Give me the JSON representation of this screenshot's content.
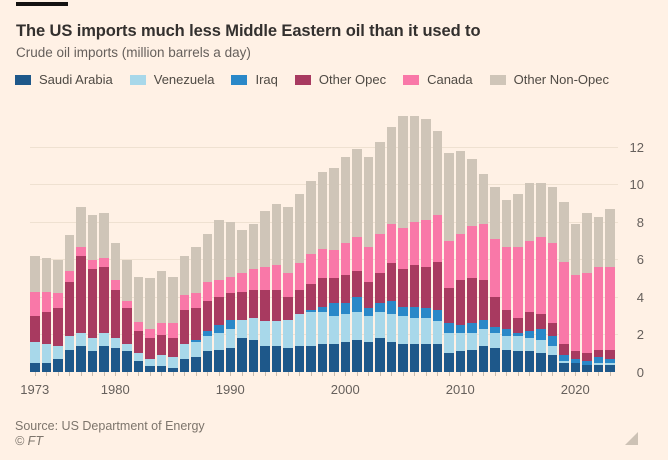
{
  "header": {
    "title": "The US imports much less Middle Eastern oil than it used to",
    "subtitle": "Crude oil imports (million barrels a day)"
  },
  "colors": {
    "background": "#fff1e5",
    "saudi_arabia": "#1e588a",
    "venezuela": "#a8d8ea",
    "iraq": "#2a88c8",
    "other_opec": "#a83a60",
    "canada": "#f978a8",
    "other_non_opec": "#cfc5b8",
    "gridline": "#efe1d1",
    "axis_text": "#66605c",
    "title_text": "#33302e"
  },
  "legend": {
    "items": [
      {
        "label": "Saudi Arabia",
        "color": "#1e588a"
      },
      {
        "label": "Venezuela",
        "color": "#a8d8ea"
      },
      {
        "label": "Iraq",
        "color": "#2a88c8"
      },
      {
        "label": "Other Opec",
        "color": "#a83a60"
      },
      {
        "label": "Canada",
        "color": "#f978a8"
      },
      {
        "label": "Other Non-Opec",
        "color": "#cfc5b8"
      }
    ]
  },
  "chart_data": {
    "type": "bar",
    "stacked": true,
    "title": "The US imports much less Middle Eastern oil than it used to",
    "subtitle": "Crude oil imports (million barrels a day)",
    "xlabel": "",
    "ylabel": "million barrels a day",
    "ylim": [
      0,
      14
    ],
    "y_ticks": [
      0,
      2,
      4,
      6,
      8,
      10,
      12
    ],
    "x_ticks": [
      1973,
      1980,
      1990,
      2000,
      2010,
      2020
    ],
    "grid": "horizontal",
    "legend_position": "top",
    "y_axis_side": "right",
    "categories": [
      1973,
      1974,
      1975,
      1976,
      1977,
      1978,
      1979,
      1980,
      1981,
      1982,
      1983,
      1984,
      1985,
      1986,
      1987,
      1988,
      1989,
      1990,
      1991,
      1992,
      1993,
      1994,
      1995,
      1996,
      1997,
      1998,
      1999,
      2000,
      2001,
      2002,
      2003,
      2004,
      2005,
      2006,
      2007,
      2008,
      2009,
      2010,
      2011,
      2012,
      2013,
      2014,
      2015,
      2016,
      2017,
      2018,
      2019,
      2020,
      2021,
      2022,
      2023
    ],
    "series": [
      {
        "name": "Saudi Arabia",
        "color": "#1e588a",
        "values": [
          0.5,
          0.5,
          0.7,
          1.2,
          1.4,
          1.1,
          1.4,
          1.3,
          1.1,
          0.6,
          0.3,
          0.3,
          0.2,
          0.7,
          0.8,
          1.1,
          1.2,
          1.3,
          1.8,
          1.7,
          1.4,
          1.4,
          1.3,
          1.4,
          1.4,
          1.5,
          1.5,
          1.6,
          1.7,
          1.6,
          1.8,
          1.6,
          1.5,
          1.5,
          1.5,
          1.5,
          1.0,
          1.1,
          1.2,
          1.4,
          1.3,
          1.2,
          1.1,
          1.1,
          1.0,
          0.9,
          0.5,
          0.5,
          0.4,
          0.4,
          0.4
        ]
      },
      {
        "name": "Venezuela",
        "color": "#a8d8ea",
        "values": [
          1.1,
          1.0,
          0.7,
          0.7,
          0.7,
          0.7,
          0.7,
          0.5,
          0.4,
          0.4,
          0.4,
          0.6,
          0.6,
          0.8,
          0.8,
          0.8,
          0.9,
          1.0,
          1.0,
          1.2,
          1.3,
          1.3,
          1.5,
          1.7,
          1.8,
          1.7,
          1.5,
          1.5,
          1.5,
          1.4,
          1.4,
          1.5,
          1.5,
          1.4,
          1.4,
          1.2,
          1.1,
          1.0,
          0.9,
          0.9,
          0.8,
          0.7,
          0.8,
          0.7,
          0.7,
          0.5,
          0.1,
          0.0,
          0.0,
          0.1,
          0.1
        ]
      },
      {
        "name": "Iraq",
        "color": "#2a88c8",
        "values": [
          0.0,
          0.0,
          0.0,
          0.0,
          0.0,
          0.0,
          0.0,
          0.0,
          0.0,
          0.0,
          0.0,
          0.0,
          0.0,
          0.0,
          0.1,
          0.3,
          0.4,
          0.5,
          0.0,
          0.0,
          0.0,
          0.0,
          0.0,
          0.0,
          0.1,
          0.3,
          0.7,
          0.6,
          0.8,
          0.4,
          0.5,
          0.7,
          0.5,
          0.6,
          0.5,
          0.6,
          0.5,
          0.4,
          0.5,
          0.5,
          0.3,
          0.4,
          0.2,
          0.4,
          0.6,
          0.5,
          0.3,
          0.2,
          0.2,
          0.3,
          0.2
        ]
      },
      {
        "name": "Other Opec",
        "color": "#a83a60",
        "values": [
          1.4,
          1.7,
          2.0,
          2.9,
          4.1,
          3.7,
          3.5,
          2.6,
          1.9,
          1.2,
          1.1,
          1.1,
          1.0,
          1.8,
          1.7,
          1.6,
          1.5,
          1.4,
          1.5,
          1.5,
          1.7,
          1.7,
          1.2,
          1.3,
          1.4,
          1.5,
          1.3,
          1.5,
          1.4,
          1.4,
          1.6,
          2.0,
          2.0,
          2.2,
          2.2,
          2.6,
          1.9,
          2.4,
          2.4,
          2.1,
          1.6,
          1.0,
          0.8,
          1.0,
          0.8,
          0.7,
          0.6,
          0.4,
          0.4,
          0.4,
          0.5
        ]
      },
      {
        "name": "Canada",
        "color": "#f978a8",
        "values": [
          1.3,
          1.1,
          0.8,
          0.6,
          0.5,
          0.5,
          0.5,
          0.5,
          0.4,
          0.5,
          0.5,
          0.6,
          0.8,
          0.8,
          0.8,
          1.0,
          0.9,
          0.9,
          1.0,
          1.1,
          1.2,
          1.3,
          1.3,
          1.4,
          1.6,
          1.6,
          1.5,
          1.7,
          1.8,
          1.9,
          2.1,
          2.1,
          2.2,
          2.3,
          2.5,
          2.5,
          2.5,
          2.5,
          2.8,
          3.0,
          3.1,
          3.4,
          3.8,
          3.8,
          4.1,
          4.3,
          4.4,
          4.1,
          4.3,
          4.4,
          4.4
        ]
      },
      {
        "name": "Other Non-Opec",
        "color": "#cfc5b8",
        "values": [
          1.9,
          1.8,
          1.8,
          1.9,
          2.1,
          2.4,
          2.4,
          2.0,
          2.2,
          2.4,
          2.7,
          2.8,
          2.5,
          2.1,
          2.5,
          2.6,
          3.2,
          2.9,
          2.3,
          2.4,
          3.0,
          3.3,
          3.5,
          3.7,
          3.9,
          4.1,
          4.4,
          4.6,
          4.7,
          4.8,
          4.9,
          5.2,
          6.0,
          5.7,
          5.4,
          4.5,
          4.7,
          4.4,
          3.6,
          2.7,
          2.8,
          2.5,
          2.8,
          3.1,
          2.9,
          3.0,
          3.2,
          2.7,
          3.2,
          2.7,
          3.1
        ]
      }
    ]
  },
  "footer": {
    "source": "Source: US Department of Energy",
    "copyright": "© FT"
  },
  "icons": {
    "resize_triangle": "resize-handle"
  }
}
